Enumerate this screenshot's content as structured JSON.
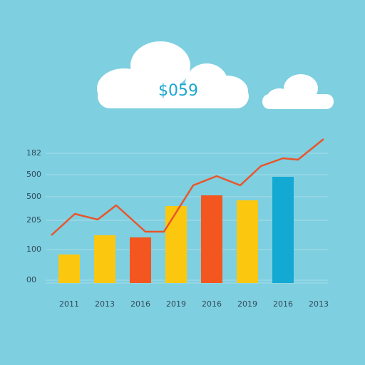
{
  "chart_data": {
    "type": "bar",
    "annotation": "$059",
    "categories": [
      "2011",
      "2013",
      "2016",
      "2019",
      "2016",
      "2019",
      "2016",
      "2013"
    ],
    "values": [
      40,
      67,
      64,
      108,
      123,
      116,
      149,
      null
    ],
    "colors": [
      "#fbc80f",
      "#fbc80f",
      "#f4561f",
      "#fbc80f",
      "#f4561f",
      "#fbc80f",
      "#14a9d3",
      "#fbc80f"
    ],
    "line": {
      "color": "#e9552b",
      "x": [
        0,
        0.66,
        1.3,
        1.82,
        2.64,
        3.16,
        3.98,
        4.64,
        5.3,
        5.88,
        6.5,
        6.92,
        7.64
      ],
      "values": [
        67,
        97,
        89,
        109,
        72,
        72,
        137,
        150,
        137,
        164,
        175,
        173,
        202
      ]
    },
    "xlim": [
      0,
      8
    ],
    "ylim": [
      0,
      210
    ],
    "yticks": [
      {
        "value": 4,
        "label": "00"
      },
      {
        "value": 47,
        "label": "100"
      },
      {
        "value": 88,
        "label": "205"
      },
      {
        "value": 121,
        "label": "500"
      },
      {
        "value": 152,
        "label": "500"
      },
      182
    ],
    "grid": true
  }
}
